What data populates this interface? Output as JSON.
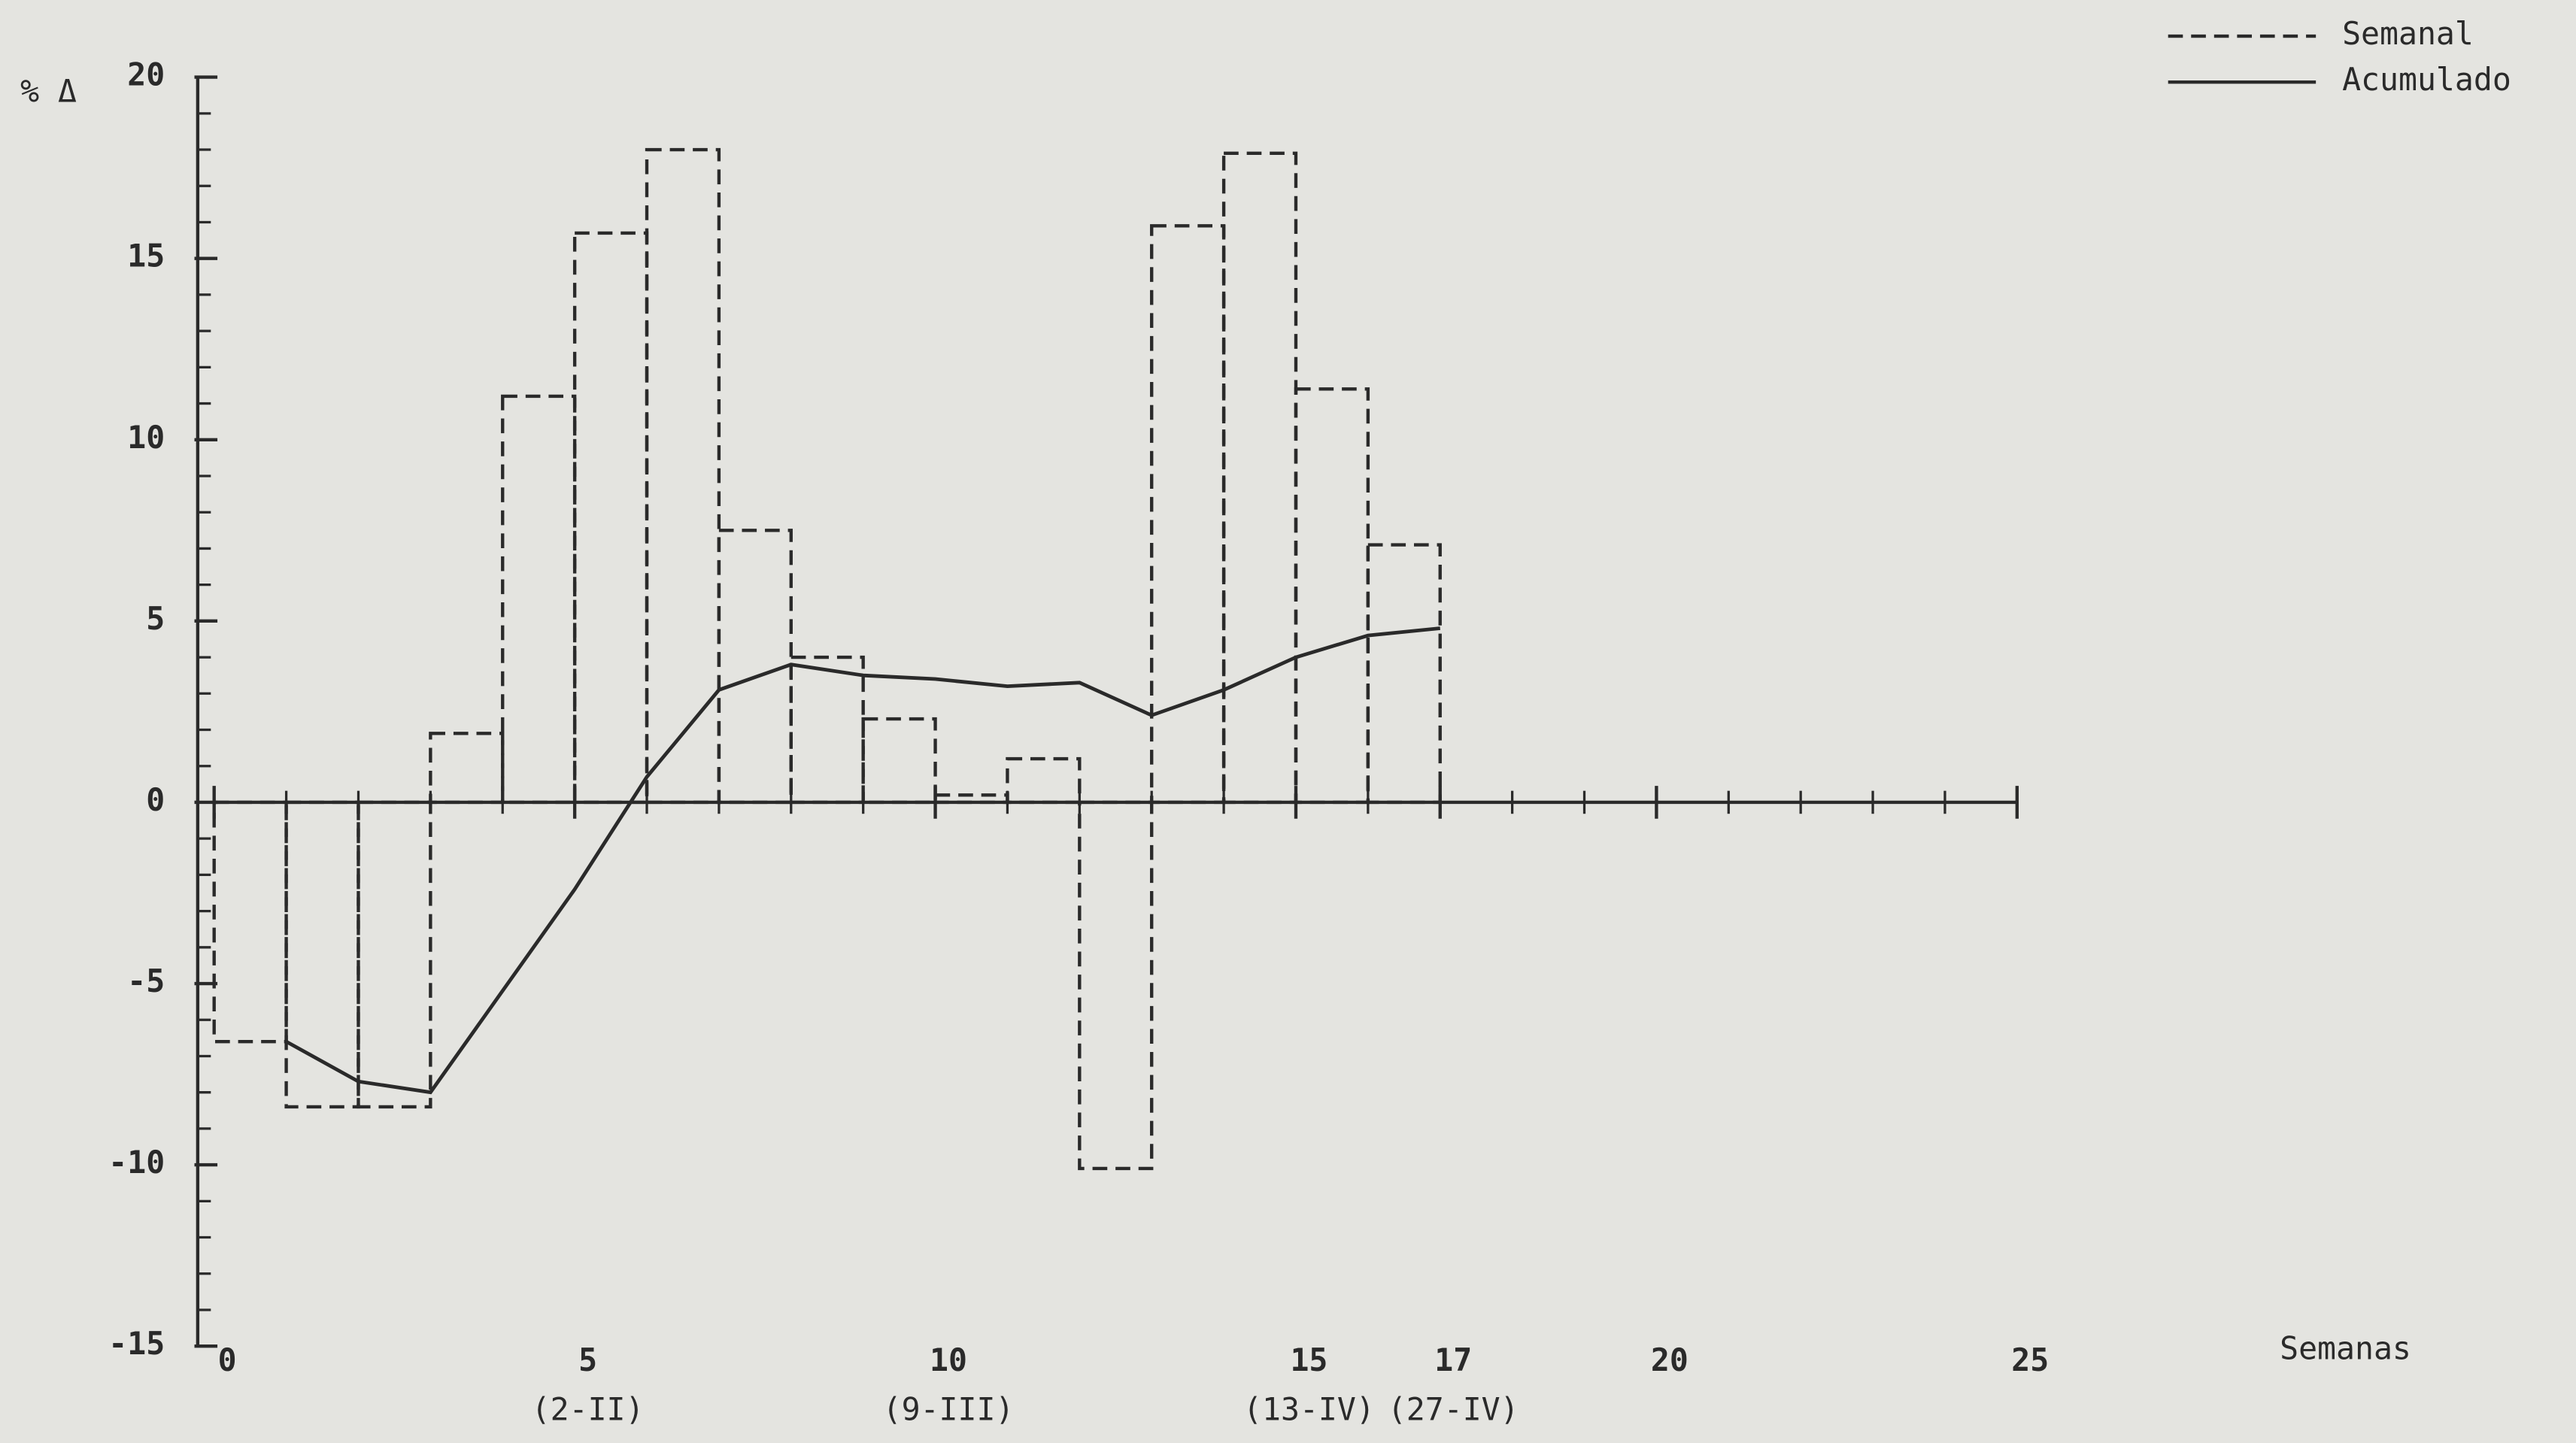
{
  "chart_data": {
    "type": "step-line",
    "y_label": "% Δ",
    "x_label": "Semanas",
    "xlim": [
      0,
      25
    ],
    "ylim": [
      -15,
      20
    ],
    "yticks": [
      -15,
      -10,
      -5,
      0,
      5,
      10,
      15,
      20
    ],
    "yminorticks": [
      -14,
      -13,
      -12,
      -11,
      -9,
      -8,
      -7,
      -6,
      -4,
      -3,
      -2,
      -1,
      1,
      2,
      3,
      4,
      6,
      7,
      8,
      9,
      11,
      12,
      13,
      14,
      16,
      17,
      18,
      19
    ],
    "xticks": [
      0,
      5,
      10,
      15,
      17,
      20,
      25
    ],
    "xminorticks": [
      1,
      2,
      3,
      4,
      6,
      7,
      8,
      9,
      11,
      12,
      13,
      14,
      16,
      18,
      19,
      21,
      22,
      23,
      24
    ],
    "xtick_dates": [
      {
        "value": 5,
        "label": "(2-II)"
      },
      {
        "value": 10,
        "label": "(9-III)"
      },
      {
        "value": 15,
        "label": "(13-IV)"
      },
      {
        "value": 17,
        "label": "(27-IV)"
      }
    ],
    "x": [
      1,
      2,
      3,
      4,
      5,
      6,
      7,
      8,
      9,
      10,
      11,
      12,
      13,
      14,
      15,
      16,
      17
    ],
    "series": [
      {
        "name": "Semanal",
        "color": "#2a2a2a",
        "style": "step-dashed",
        "values": [
          -6.6,
          -8.4,
          -8.4,
          1.9,
          11.2,
          15.7,
          18.0,
          7.5,
          4.0,
          2.3,
          0.2,
          1.2,
          -10.1,
          15.9,
          17.9,
          11.4,
          7.1
        ]
      },
      {
        "name": "Acumulado",
        "color": "#2a2a2a",
        "style": "line",
        "values": [
          -6.6,
          -7.7,
          -8.0,
          -5.2,
          -2.4,
          0.7,
          3.1,
          3.8,
          3.5,
          3.4,
          3.2,
          3.3,
          2.4,
          3.1,
          4.0,
          4.6,
          4.8
        ]
      }
    ]
  }
}
